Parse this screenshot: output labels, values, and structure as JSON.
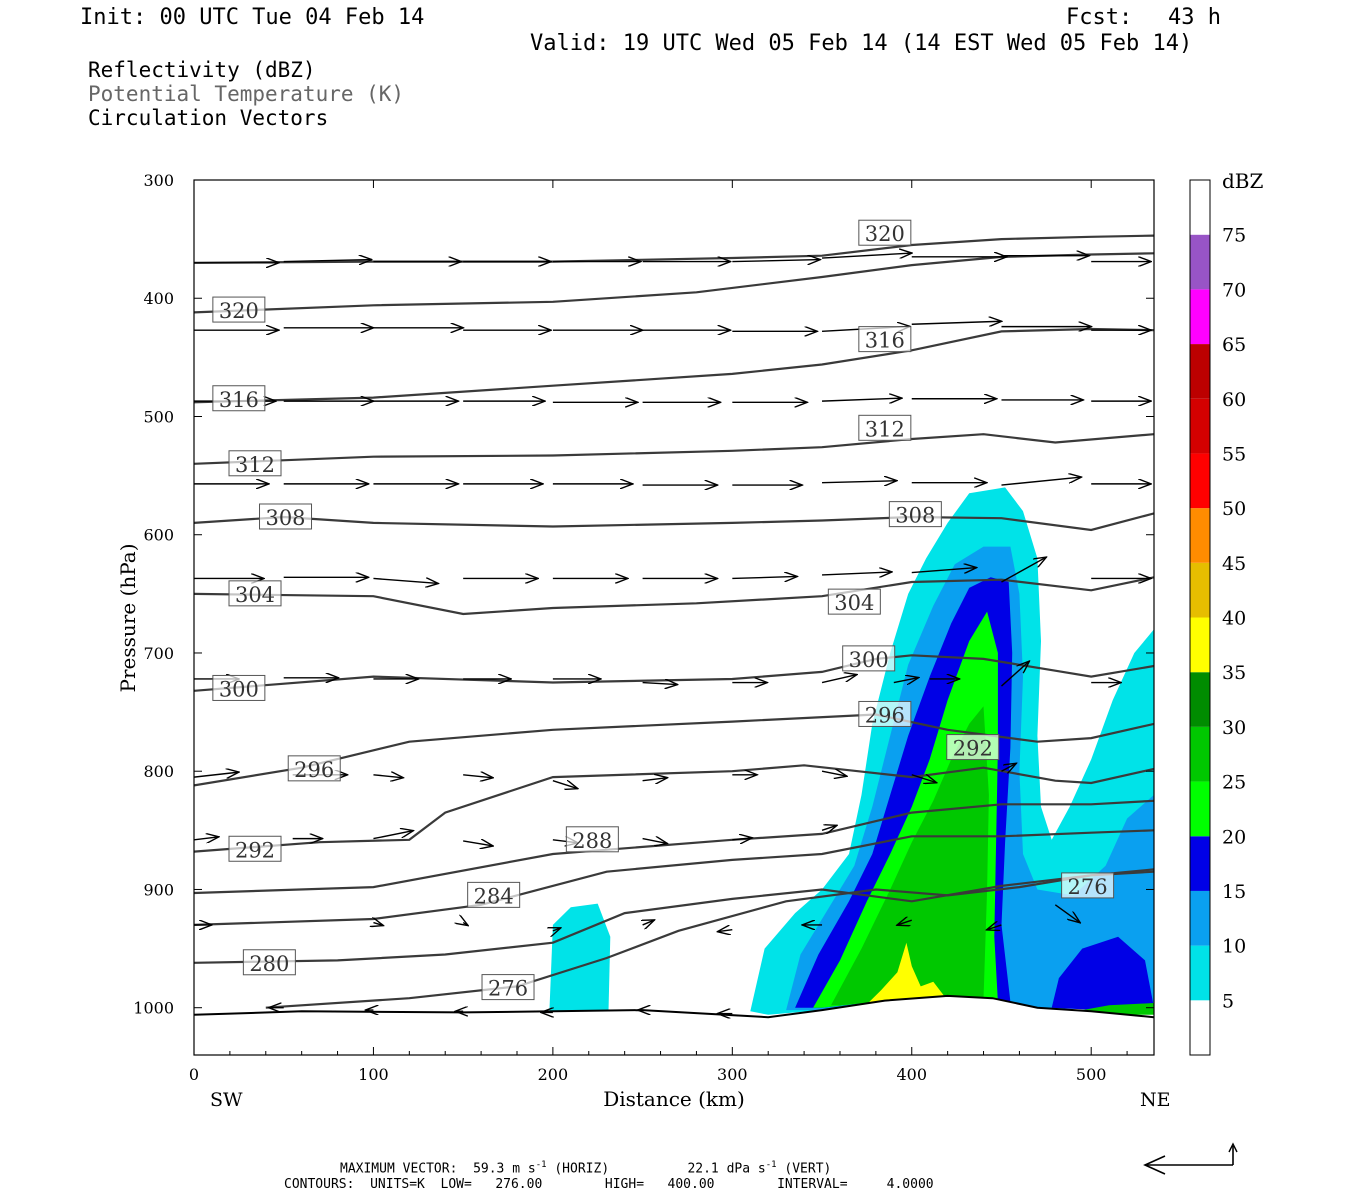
{
  "header": {
    "init": "Init: 00 UTC Tue 04 Feb 14",
    "fcst_label": "Fcst:",
    "fcst_value": "43 h",
    "valid": "Valid: 19 UTC Wed 05 Feb 14 (14 EST Wed 05 Feb 14)"
  },
  "fields": {
    "reflectivity": "Reflectivity (dBZ)",
    "theta": "Potential Temperature (K)",
    "vectors": "Circulation Vectors"
  },
  "colors": {
    "reflectivity_text": "#000000",
    "theta_text": "#666666",
    "contour": "#3a3a3a"
  },
  "chart_data": {
    "type": "heatmap",
    "xlabel": "Distance (km)",
    "ylabel": "Pressure (hPa)",
    "xlim": [
      0,
      535
    ],
    "ylim": [
      1040,
      300
    ],
    "x_ticks": [
      0,
      100,
      200,
      300,
      400,
      500
    ],
    "y_ticks": [
      300,
      400,
      500,
      600,
      700,
      800,
      900,
      1000
    ],
    "x_end_labels": {
      "left": "SW",
      "right": "NE"
    },
    "colorbar": {
      "unit": "dBZ",
      "levels": [
        5,
        10,
        15,
        20,
        25,
        30,
        35,
        40,
        45,
        50,
        55,
        60,
        65,
        70,
        75
      ],
      "colors": [
        "#ffffff",
        "#00e3e8",
        "#0aa0f0",
        "#0000e6",
        "#00ff00",
        "#00c800",
        "#008c00",
        "#ffff00",
        "#e6be00",
        "#ff8c00",
        "#ff0000",
        "#d40000",
        "#bc0000",
        "#ff00ff",
        "#9854c6",
        "#ffffff"
      ]
    },
    "contour_labels": [
      {
        "v": "320",
        "x": 25,
        "p": 410
      },
      {
        "v": "320",
        "x": 385,
        "p": 345
      },
      {
        "v": "316",
        "x": 385,
        "p": 435
      },
      {
        "v": "316",
        "x": 25,
        "p": 485
      },
      {
        "v": "312",
        "x": 385,
        "p": 510
      },
      {
        "v": "312",
        "x": 34,
        "p": 540
      },
      {
        "v": "308",
        "x": 51,
        "p": 585
      },
      {
        "v": "308",
        "x": 402,
        "p": 583
      },
      {
        "v": "304",
        "x": 34,
        "p": 650
      },
      {
        "v": "304",
        "x": 368,
        "p": 657
      },
      {
        "v": "300",
        "x": 376,
        "p": 705
      },
      {
        "v": "300",
        "x": 25,
        "p": 730
      },
      {
        "v": "296",
        "x": 67,
        "p": 798
      },
      {
        "v": "296",
        "x": 385,
        "p": 752
      },
      {
        "v": "292",
        "x": 434,
        "p": 780
      },
      {
        "v": "292",
        "x": 34,
        "p": 866
      },
      {
        "v": "288",
        "x": 222,
        "p": 858
      },
      {
        "v": "284",
        "x": 167,
        "p": 905
      },
      {
        "v": "280",
        "x": 42,
        "p": 962
      },
      {
        "v": "276",
        "x": 175,
        "p": 983
      },
      {
        "v": "276",
        "x": 498,
        "p": 897
      }
    ],
    "footer": {
      "max_vector_label": "MAXIMUM VECTOR:",
      "horiz_value": "59.3",
      "horiz_suffix": "(HORIZ)",
      "vert_value": "22.1",
      "vert_suffix": "(VERT)",
      "contours": "CONTOURS:  UNITS=K  LOW=   276.00        HIGH=   400.00        INTERVAL=     4.0000"
    }
  }
}
